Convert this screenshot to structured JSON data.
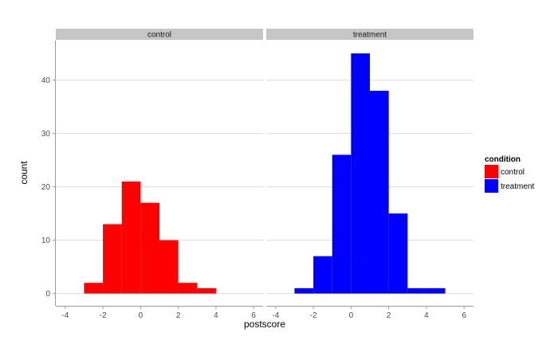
{
  "chart_data": {
    "type": "bar",
    "subtype": "faceted-histogram",
    "xlabel": "postscore",
    "ylabel": "count",
    "xlim": [
      -4.5,
      6.5
    ],
    "ylim": [
      -2.3,
      47.4
    ],
    "x_ticks": [
      -4,
      -2,
      0,
      2,
      4,
      6
    ],
    "y_ticks": [
      0,
      10,
      20,
      30,
      40
    ],
    "bin_width": 1,
    "grid": true,
    "legend": {
      "title": "condition",
      "placement": "right",
      "entries": [
        {
          "label": "control",
          "color": "#ff0000"
        },
        {
          "label": "treatment",
          "color": "#0000ff"
        }
      ]
    },
    "facets": [
      {
        "label": "control",
        "color": "#ff0000",
        "bins": [
          {
            "x0": -3,
            "x1": -2,
            "count": 2
          },
          {
            "x0": -2,
            "x1": -1,
            "count": 13
          },
          {
            "x0": -1,
            "x1": 0,
            "count": 21
          },
          {
            "x0": 0,
            "x1": 1,
            "count": 17
          },
          {
            "x0": 1,
            "x1": 2,
            "count": 10
          },
          {
            "x0": 2,
            "x1": 3,
            "count": 2
          },
          {
            "x0": 3,
            "x1": 4,
            "count": 1
          }
        ]
      },
      {
        "label": "treatment",
        "color": "#0000ff",
        "bins": [
          {
            "x0": -3,
            "x1": -2,
            "count": 1
          },
          {
            "x0": -2,
            "x1": -1,
            "count": 7
          },
          {
            "x0": -1,
            "x1": 0,
            "count": 26
          },
          {
            "x0": 0,
            "x1": 1,
            "count": 45
          },
          {
            "x0": 1,
            "x1": 2,
            "count": 38
          },
          {
            "x0": 2,
            "x1": 3,
            "count": 15
          },
          {
            "x0": 3,
            "x1": 4,
            "count": 1
          },
          {
            "x0": 4,
            "x1": 5,
            "count": 1
          }
        ]
      }
    ],
    "colors": {
      "strip_bg": "#c6c6c6",
      "grid": "#dcdcdc",
      "axis": "#999999",
      "tick_text": "#4d4d4d"
    }
  }
}
